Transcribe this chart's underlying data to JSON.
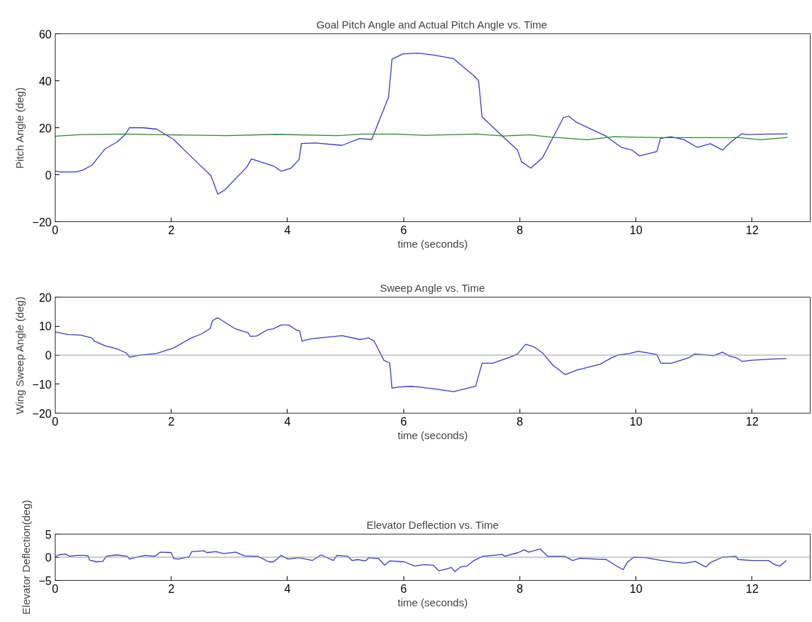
{
  "chart_data": [
    {
      "type": "line",
      "title": "Goal Pitch Angle and Actual Pitch Angle vs. Time",
      "xlabel": "time (seconds)",
      "ylabel": "Pitch Angle (deg)",
      "xlim": [
        0,
        13
      ],
      "ylim": [
        -20,
        60
      ],
      "xticks": [
        0,
        2,
        4,
        6,
        8,
        10,
        12
      ],
      "yticks": [
        -20,
        0,
        20,
        40,
        60
      ],
      "series": [
        {
          "color": "#3a3ac0",
          "x": [
            0,
            0.1,
            0.36,
            0.48,
            0.63,
            0.86,
            1.07,
            1.2,
            1.28,
            1.51,
            1.75,
            2.04,
            2.42,
            2.68,
            2.8,
            2.92,
            3.3,
            3.38,
            3.76,
            3.89,
            4.06,
            4.2,
            4.24,
            4.48,
            4.94,
            5.24,
            5.45,
            5.74,
            5.8,
            5.99,
            6.24,
            6.5,
            6.86,
            7.22,
            7.29,
            7.35,
            7.72,
            7.96,
            8.03,
            8.19,
            8.39,
            8.75,
            8.84,
            8.97,
            9.48,
            9.75,
            9.93,
            10.06,
            10.36,
            10.42,
            10.6,
            10.83,
            11.06,
            11.28,
            11.49,
            11.64,
            11.82,
            11.91,
            12.27,
            12.61
          ],
          "values": [
            1.5,
            1.2,
            1.2,
            2,
            4,
            11,
            14,
            17,
            20,
            20,
            19.4,
            15,
            5.8,
            -0.3,
            -8.3,
            -6.5,
            3.3,
            6.7,
            3.7,
            1.5,
            2.8,
            6.4,
            13.3,
            13.5,
            12.5,
            15.4,
            15,
            33,
            49.2,
            51.5,
            51.8,
            51,
            49.4,
            41.9,
            40,
            24.6,
            16,
            10.5,
            5.5,
            2.8,
            7.2,
            24.3,
            25,
            22.4,
            16.5,
            11.6,
            10.5,
            8,
            9.9,
            15.4,
            16.2,
            14.9,
            11.6,
            13.2,
            10.5,
            14.1,
            17.4,
            17.1,
            17.3,
            17.4
          ]
        },
        {
          "color": "#2a8a2a",
          "x": [
            0,
            0.44,
            1.2,
            1.91,
            2.96,
            3.8,
            4.86,
            5.28,
            5.87,
            6.36,
            7.26,
            7.72,
            8.17,
            8.53,
            9.16,
            9.61,
            10.42,
            11.78,
            12.14,
            12.61
          ],
          "values": [
            16.4,
            17.1,
            17.3,
            17,
            16.6,
            17.2,
            16.6,
            17.3,
            17.3,
            16.8,
            17.3,
            16.5,
            17,
            16,
            14.9,
            16.2,
            15.8,
            15.8,
            14.9,
            15.9
          ]
        }
      ]
    },
    {
      "type": "line",
      "title": "Sweep Angle vs. Time",
      "xlabel": "time (seconds)",
      "ylabel": "Wing Sweep Angle (deg)",
      "xlim": [
        0,
        13
      ],
      "ylim": [
        -20,
        20
      ],
      "xticks": [
        0,
        2,
        4,
        6,
        8,
        10,
        12
      ],
      "yticks": [
        -20,
        -10,
        0,
        10,
        20
      ],
      "ref_lines": [
        {
          "axis": "y",
          "value": 0,
          "color": "#999999"
        }
      ],
      "series": [
        {
          "color": "#3a3ac0",
          "x": [
            0,
            0.23,
            0.44,
            0.63,
            0.67,
            0.86,
            1.07,
            1.22,
            1.28,
            1.49,
            1.75,
            2.04,
            2.33,
            2.52,
            2.67,
            2.71,
            2.8,
            3.09,
            3.32,
            3.36,
            3.47,
            3.64,
            3.76,
            3.89,
            4.02,
            4.15,
            4.21,
            4.25,
            4.4,
            4.94,
            5.24,
            5.4,
            5.49,
            5.66,
            5.76,
            5.8,
            5.91,
            6.12,
            6.27,
            6.59,
            6.86,
            7.24,
            7.35,
            7.53,
            7.85,
            7.96,
            8.1,
            8.23,
            8.39,
            8.57,
            8.78,
            8.98,
            9.39,
            9.57,
            9.7,
            9.88,
            10.04,
            10.36,
            10.43,
            10.61,
            10.92,
            11.01,
            11.13,
            11.33,
            11.49,
            11.62,
            11.74,
            11.83,
            11.96,
            12.37,
            12.59
          ],
          "values": [
            8,
            7.1,
            6.9,
            5.9,
            4.9,
            3.2,
            2.1,
            0.8,
            -0.7,
            0.1,
            0.6,
            2.5,
            5.8,
            7.3,
            9.2,
            11.9,
            12.9,
            9.2,
            7.7,
            6.5,
            6.6,
            8.6,
            9.1,
            10.4,
            10.4,
            8.7,
            8.4,
            4.8,
            5.6,
            6.7,
            5.4,
            5.9,
            4.9,
            -1.8,
            -2.7,
            -11.4,
            -11,
            -10.8,
            -11,
            -11.8,
            -12.6,
            -10.7,
            -2.8,
            -2.8,
            -0.6,
            0.4,
            3.7,
            3,
            0.8,
            -3.5,
            -6.7,
            -5.2,
            -3.1,
            -1,
            0.1,
            0.5,
            1.3,
            0.2,
            -2.8,
            -2.8,
            -0.8,
            0.4,
            0.2,
            -0.2,
            1,
            -0.4,
            -1,
            -2.2,
            -1.8,
            -1.3,
            -1.2
          ]
        }
      ]
    },
    {
      "type": "line",
      "title": "Elevator Deflection vs. Time",
      "xlabel": "time (seconds)",
      "ylabel": "Elevator Deflection(deg)",
      "xlim": [
        0,
        13
      ],
      "ylim": [
        -5,
        5
      ],
      "xticks": [
        0,
        2,
        4,
        6,
        8,
        10,
        12
      ],
      "yticks": [
        -5,
        0,
        5
      ],
      "ref_lines": [
        {
          "axis": "y",
          "value": 0,
          "color": "#999999"
        }
      ],
      "series": [
        {
          "color": "#3a3ac0",
          "x": [
            0,
            0.06,
            0.17,
            0.25,
            0.38,
            0.5,
            0.57,
            0.59,
            0.71,
            0.82,
            0.88,
            1.05,
            1.24,
            1.28,
            1.43,
            1.55,
            1.72,
            1.81,
            2.0,
            2.04,
            2.12,
            2.31,
            2.35,
            2.44,
            2.56,
            2.61,
            2.77,
            2.9,
            3.11,
            3.26,
            3.49,
            3.68,
            3.76,
            3.89,
            4.01,
            4.2,
            4.43,
            4.58,
            4.79,
            4.85,
            5.04,
            5.11,
            5.21,
            5.34,
            5.4,
            5.57,
            5.67,
            5.76,
            6.01,
            6.19,
            6.35,
            6.51,
            6.6,
            6.69,
            6.82,
            6.88,
            6.98,
            7.09,
            7.2,
            7.36,
            7.7,
            7.74,
            7.97,
            8.08,
            8.15,
            8.35,
            8.48,
            8.77,
            8.91,
            9.04,
            9.31,
            9.49,
            9.61,
            9.78,
            9.85,
            9.96,
            10.17,
            10.39,
            10.66,
            10.84,
            11.02,
            11.2,
            11.29,
            11.49,
            11.72,
            11.76,
            12.01,
            12.28,
            12.39,
            12.48,
            12.59
          ],
          "values": [
            0.1,
            0.5,
            0.7,
            0.2,
            0.4,
            0.4,
            0.3,
            -0.6,
            -1,
            -0.9,
            0.2,
            0.5,
            0.2,
            -0.4,
            0.1,
            0.4,
            0.2,
            1.1,
            1,
            -0.3,
            -0.4,
            0.1,
            1.2,
            1.3,
            1.4,
            1,
            1.2,
            0.8,
            1.1,
            0.3,
            0.2,
            -1,
            -1,
            0.4,
            -0.4,
            -0.1,
            -0.7,
            0.5,
            -0.7,
            0.4,
            0.2,
            -0.7,
            -0.5,
            -0.8,
            -0.1,
            -0.3,
            -1.7,
            -0.8,
            -1,
            -1.9,
            -1.6,
            -1.7,
            -2.9,
            -2.7,
            -2.2,
            -3.1,
            -2.1,
            -1.9,
            -0.8,
            0.2,
            0.6,
            0.2,
            1,
            1.6,
            1.1,
            1.8,
            0.2,
            0.2,
            -0.7,
            -0.2,
            -0.4,
            -0.5,
            -1.5,
            -2.7,
            -1.1,
            0,
            -0.1,
            -0.6,
            -1.1,
            -1.3,
            -0.9,
            -2.1,
            -1.1,
            0,
            0.2,
            -0.5,
            -0.7,
            -0.7,
            -1.6,
            -1.9,
            -0.7
          ]
        }
      ]
    }
  ]
}
